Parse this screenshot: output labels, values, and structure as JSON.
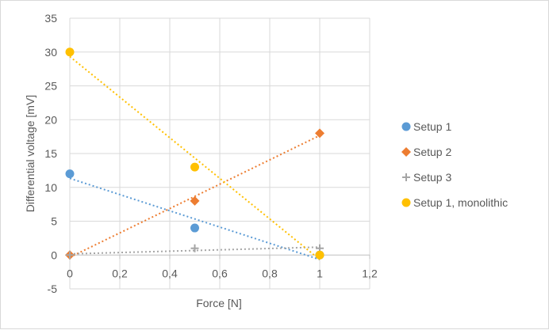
{
  "chart_data": {
    "type": "scatter",
    "title": "",
    "xlabel": "Force [N]",
    "ylabel": "Differential voltage [mV]",
    "xlim": [
      0,
      1.2
    ],
    "ylim": [
      -5,
      35
    ],
    "x_ticks": [
      "0",
      "0,2",
      "0,4",
      "0,6",
      "0,8",
      "1",
      "1,2"
    ],
    "y_ticks": [
      "-5",
      "0",
      "5",
      "10",
      "15",
      "20",
      "25",
      "30",
      "35"
    ],
    "grid": true,
    "legend_position": "right",
    "series": [
      {
        "name": "Setup 1",
        "marker": "circle",
        "color": "#5b9bd5",
        "trendline": true,
        "points": [
          [
            0,
            12
          ],
          [
            0.5,
            4
          ],
          [
            1,
            0
          ]
        ]
      },
      {
        "name": "Setup 2",
        "marker": "diamond",
        "color": "#ed7d31",
        "trendline": true,
        "points": [
          [
            0,
            0
          ],
          [
            0.5,
            8
          ],
          [
            1,
            18
          ]
        ]
      },
      {
        "name": "Setup 3",
        "marker": "plus",
        "color": "#a5a5a5",
        "trendline": true,
        "points": [
          [
            0,
            0
          ],
          [
            0.5,
            1
          ],
          [
            1,
            1
          ]
        ]
      },
      {
        "name": "Setup 1, monolithic",
        "marker": "circle",
        "color": "#ffc000",
        "trendline": true,
        "points": [
          [
            0,
            30
          ],
          [
            0.5,
            13
          ],
          [
            1,
            0
          ]
        ]
      }
    ]
  }
}
